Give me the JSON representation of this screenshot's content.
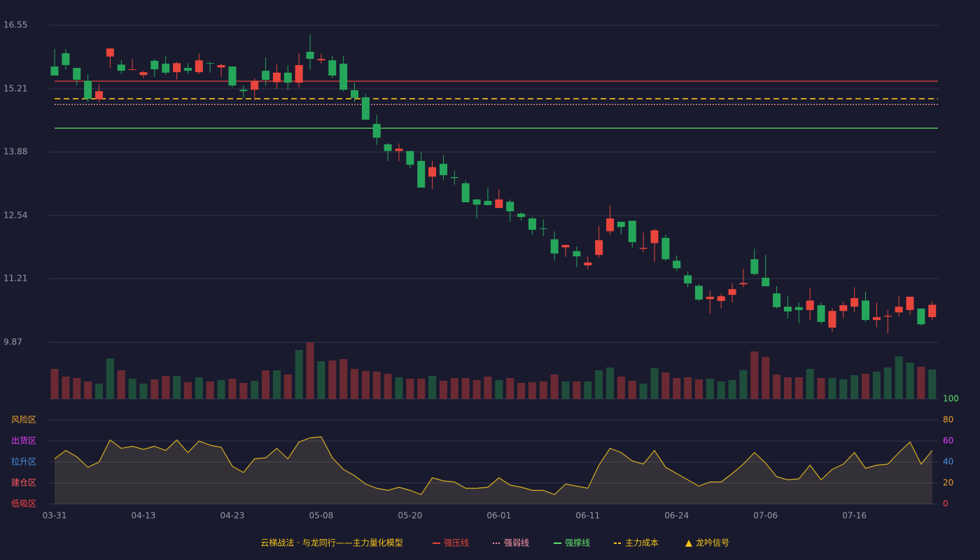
{
  "chart_data": {
    "type": "candlestick",
    "categories": [
      "03-31",
      null,
      null,
      null,
      null,
      null,
      null,
      null,
      "04-13",
      null,
      null,
      null,
      null,
      null,
      null,
      null,
      "04-23",
      null,
      null,
      null,
      null,
      null,
      null,
      null,
      "05-08",
      null,
      null,
      null,
      null,
      null,
      null,
      null,
      "05-20",
      null,
      null,
      null,
      null,
      null,
      null,
      null,
      "06-01",
      null,
      null,
      null,
      null,
      null,
      null,
      null,
      "06-11",
      null,
      null,
      null,
      null,
      null,
      null,
      null,
      "06-24",
      null,
      null,
      null,
      null,
      null,
      null,
      null,
      "07-06",
      null,
      null,
      null,
      null,
      null,
      null,
      null,
      "07-16",
      null,
      null,
      null,
      null,
      null,
      null,
      null
    ],
    "open": [
      15.68,
      15.96,
      15.65,
      15.38,
      14.99,
      15.89,
      15.72,
      15.61,
      15.5,
      15.8,
      15.74,
      15.56,
      15.65,
      15.56,
      15.75,
      15.66,
      15.68,
      15.19,
      15.19,
      15.59,
      15.35,
      15.55,
      15.34,
      15.99,
      15.81,
      15.81,
      15.74,
      15.18,
      15.03,
      14.47,
      14.04,
      13.9,
      13.9,
      13.69,
      13.36,
      13.63,
      13.35,
      13.22,
      12.88,
      12.85,
      12.7,
      12.83,
      12.58,
      12.48,
      12.27,
      12.04,
      11.87,
      11.79,
      11.49,
      11.71,
      12.21,
      12.41,
      12.43,
      11.84,
      11.96,
      12.07,
      11.59,
      11.28,
      11.06,
      10.78,
      10.74,
      10.87,
      11.09,
      11.62,
      11.23,
      10.9,
      10.62,
      10.61,
      10.55,
      10.65,
      10.18,
      10.53,
      10.62,
      10.75,
      10.34,
      10.41,
      10.5,
      10.55,
      10.58,
      10.4
    ],
    "close": [
      15.49,
      15.71,
      15.4,
      15.0,
      15.16,
      16.06,
      15.59,
      15.62,
      15.56,
      15.62,
      15.55,
      15.75,
      15.59,
      15.81,
      15.74,
      15.71,
      15.28,
      15.16,
      15.38,
      15.4,
      15.55,
      15.34,
      15.71,
      15.84,
      15.84,
      15.49,
      15.19,
      15.02,
      14.56,
      14.18,
      13.9,
      13.95,
      13.61,
      13.13,
      13.56,
      13.39,
      13.33,
      12.82,
      12.77,
      12.76,
      12.88,
      12.63,
      12.51,
      12.24,
      12.26,
      11.74,
      11.92,
      11.68,
      11.55,
      12.02,
      12.48,
      12.3,
      11.98,
      11.86,
      12.23,
      11.62,
      11.43,
      11.11,
      10.77,
      10.83,
      10.84,
      10.99,
      11.12,
      11.31,
      11.05,
      10.61,
      10.52,
      10.55,
      10.75,
      10.3,
      10.53,
      10.65,
      10.8,
      10.34,
      10.4,
      10.43,
      10.62,
      10.83,
      10.25,
      10.66
    ],
    "high": [
      16.05,
      16.05,
      15.65,
      15.52,
      15.31,
      16.06,
      15.81,
      15.84,
      15.59,
      15.84,
      15.9,
      15.78,
      15.75,
      15.95,
      15.78,
      15.74,
      15.68,
      15.28,
      15.43,
      15.87,
      15.72,
      15.71,
      15.96,
      16.36,
      15.95,
      15.9,
      15.9,
      15.34,
      15.1,
      14.66,
      14.07,
      14.06,
      13.9,
      13.87,
      13.69,
      13.81,
      13.48,
      13.28,
      12.88,
      13.13,
      13.1,
      12.88,
      12.61,
      12.51,
      12.46,
      12.21,
      11.93,
      11.89,
      11.68,
      12.32,
      12.76,
      12.41,
      12.43,
      12.18,
      12.26,
      12.14,
      11.7,
      11.36,
      11.09,
      10.96,
      10.9,
      11.11,
      11.42,
      11.84,
      11.71,
      11.05,
      10.84,
      10.71,
      11.02,
      10.7,
      10.59,
      10.72,
      11.03,
      10.94,
      10.71,
      10.55,
      10.84,
      10.83,
      10.59,
      10.73
    ],
    "low": [
      15.49,
      15.61,
      15.28,
      14.93,
      14.93,
      15.65,
      15.52,
      15.61,
      15.44,
      15.46,
      15.5,
      15.41,
      15.52,
      15.52,
      15.55,
      15.46,
      15.24,
      15.02,
      14.97,
      15.28,
      15.21,
      15.19,
      15.24,
      15.61,
      15.74,
      15.43,
      15.16,
      14.93,
      14.56,
      14.03,
      13.69,
      13.69,
      13.54,
      13.13,
      13.1,
      13.28,
      13.19,
      12.82,
      12.48,
      12.76,
      12.69,
      12.41,
      12.43,
      12.13,
      12.11,
      11.59,
      11.67,
      11.45,
      11.4,
      11.65,
      12.13,
      12.14,
      11.86,
      11.77,
      11.56,
      11.59,
      11.37,
      11.03,
      10.74,
      10.47,
      10.58,
      10.71,
      11.03,
      11.28,
      11.05,
      10.58,
      10.37,
      10.27,
      10.34,
      10.26,
      10.09,
      10.38,
      10.5,
      10.3,
      10.19,
      10.06,
      10.41,
      10.44,
      10.22,
      10.33
    ],
    "ylim": [
      9.87,
      16.55
    ],
    "yticks": [
      16.55,
      15.21,
      13.88,
      12.54,
      11.21,
      9.87
    ],
    "up_color": "#e8453c",
    "down_color": "#26a65b",
    "levels": [
      {
        "name": "强压线",
        "value": 15.37,
        "color": "#e8453c",
        "style": "solid"
      },
      {
        "name": "强弱线",
        "value": 14.88,
        "color": "#ff9aa8",
        "style": "dotted"
      },
      {
        "name": "强撑线",
        "value": 14.38,
        "color": "#5ee36a",
        "style": "solid"
      },
      {
        "name": "主力成本",
        "value": 15.0,
        "color": "#f5c518",
        "style": "dashed"
      }
    ],
    "signal": {
      "name": "龙吟信号",
      "color": "#f5c518"
    },
    "legend_title": "云梯战法 · 与龙同行——主力量化模型",
    "volume": {
      "values": [
        43,
        32,
        30,
        25,
        22,
        58,
        41,
        29,
        22,
        28,
        33,
        33,
        24,
        31,
        25,
        27,
        29,
        23,
        26,
        41,
        41,
        35,
        70,
        81,
        54,
        55,
        57,
        43,
        40,
        39,
        36,
        31,
        29,
        29,
        33,
        26,
        30,
        30,
        27,
        32,
        27,
        30,
        23,
        24,
        25,
        35,
        25,
        25,
        25,
        41,
        45,
        32,
        26,
        22,
        44,
        38,
        30,
        31,
        28,
        29,
        25,
        27,
        41,
        68,
        60,
        35,
        31,
        31,
        43,
        30,
        30,
        28,
        34,
        36,
        39,
        45,
        61,
        52,
        46,
        42
      ],
      "ylim": [
        0,
        82
      ],
      "rise_color": "#1f4d3b",
      "fall_color": "#6b2a33"
    },
    "indicator": {
      "values": [
        43,
        51,
        45,
        35,
        40,
        61,
        53,
        55,
        52,
        55,
        51,
        61,
        49,
        60,
        56,
        54,
        36,
        30,
        43,
        44,
        53,
        43,
        59,
        63,
        64,
        44,
        33,
        27,
        19,
        15,
        13,
        16,
        13,
        9,
        25,
        22,
        21,
        15,
        15,
        16,
        25,
        18,
        16,
        13,
        13,
        9,
        19,
        17,
        15,
        37,
        53,
        49,
        41,
        38,
        51,
        35,
        29,
        23,
        17,
        21,
        21,
        29,
        38,
        49,
        39,
        26,
        23,
        24,
        37,
        23,
        33,
        38,
        49,
        34,
        37,
        38,
        49,
        59,
        38,
        51
      ],
      "ylim": [
        0,
        100
      ],
      "yticks": [
        100,
        80,
        60,
        40,
        20,
        0
      ],
      "ytick_colors": [
        "#5ee36a",
        "#f0a030",
        "#e040fb",
        "#4a90e2",
        "#f0a030",
        "#ff4444"
      ],
      "zones": [
        {
          "label": "风险区",
          "value": 80,
          "color": "#f0a030"
        },
        {
          "label": "出货区",
          "value": 60,
          "color": "#e040fb"
        },
        {
          "label": "拉升区",
          "value": 40,
          "color": "#4a90e2"
        },
        {
          "label": "建仓区",
          "value": 20,
          "color": "#ff5a5a"
        },
        {
          "label": "低吸区",
          "value": 0,
          "color": "#ff4444"
        }
      ],
      "color": "#d4b020"
    }
  }
}
